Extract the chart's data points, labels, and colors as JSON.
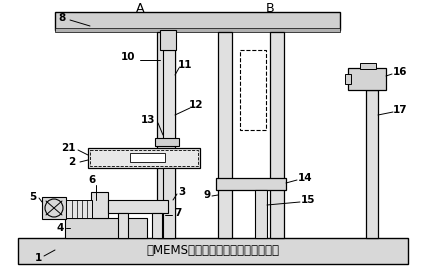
{
  "title": "多MEMS器件自动拾放机器人基础平台",
  "label_A": "A",
  "label_B": "B",
  "bg_color": "#ffffff",
  "line_color": "#000000",
  "gray_light": "#e8e8e8",
  "gray_mid": "#d0d0d0",
  "gray_dark": "#b0b0b0"
}
